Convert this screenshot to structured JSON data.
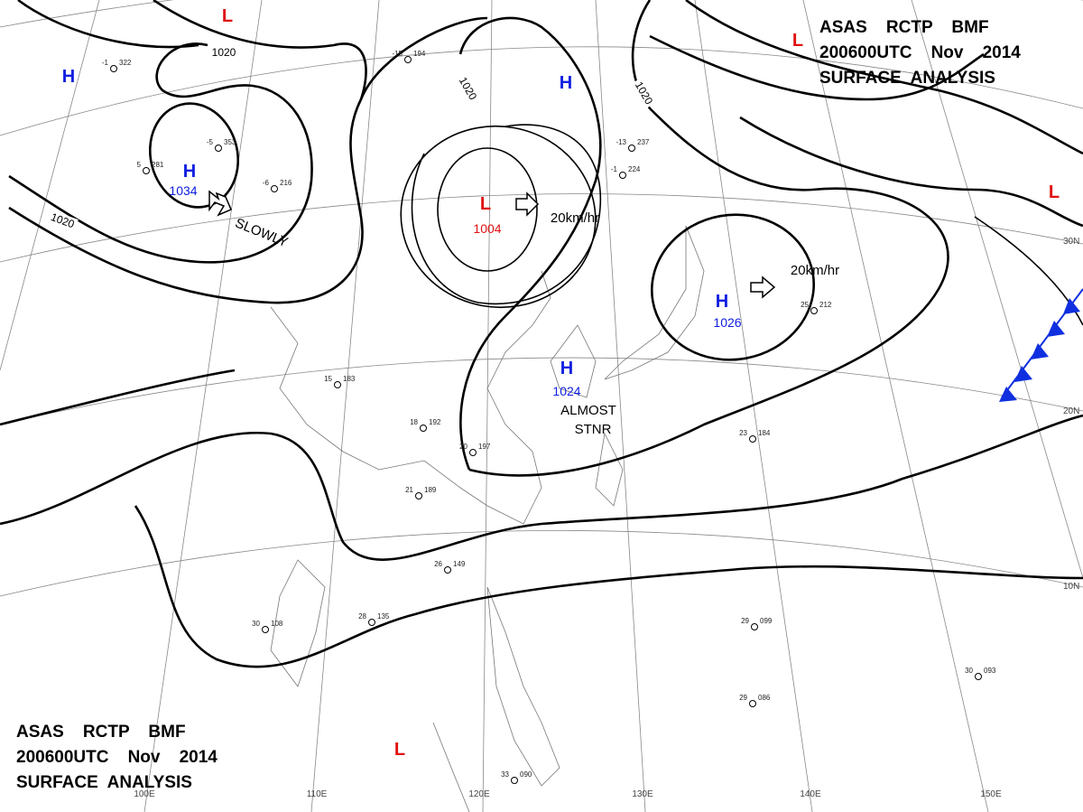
{
  "headers": [
    {
      "lines": [
        "ASAS    RCTP    BMF",
        "200600UTC    Nov    2014",
        "SURFACE  ANALYSIS"
      ]
    },
    {
      "lines": [
        "ASAS    RCTP    BMF",
        "200600UTC    Nov    2014",
        "SURFACE  ANALYSIS"
      ]
    }
  ],
  "pressure_centers": [
    {
      "symbol": "H",
      "value": "1034"
    },
    {
      "symbol": "L",
      "value": "1004"
    },
    {
      "symbol": "H",
      "value": "1026"
    },
    {
      "symbol": "H",
      "value": "1024"
    },
    {
      "symbol": "H"
    },
    {
      "symbol": "H"
    },
    {
      "symbol": "L"
    },
    {
      "symbol": "L"
    },
    {
      "symbol": "L"
    },
    {
      "symbol": "L"
    }
  ],
  "isobar_labels": [
    "1020",
    "1020",
    "1020",
    "1020"
  ],
  "motions": [
    "SLOWLY",
    "20km/hr",
    "20km/hr",
    "ALMOST",
    "STNR"
  ],
  "latitude_labels": [
    "30N",
    "20N",
    "10N"
  ],
  "longitude_labels": [
    "100E",
    "110E",
    "120E",
    "130E",
    "140E",
    "150E"
  ],
  "stations": [
    {
      "temp": "-1",
      "pressure": "322"
    },
    {
      "temp": "5",
      "pressure": "281"
    },
    {
      "temp": "-5",
      "pressure": "353"
    },
    {
      "temp": "-6",
      "pressure": "216"
    },
    {
      "temp": "-15",
      "pressure": "194"
    },
    {
      "temp": "-13",
      "pressure": "237"
    },
    {
      "temp": "-1",
      "pressure": "224"
    },
    {
      "temp": "15",
      "pressure": "183"
    },
    {
      "temp": "18",
      "pressure": "192"
    },
    {
      "temp": "20",
      "pressure": "197"
    },
    {
      "temp": "21",
      "pressure": "189"
    },
    {
      "temp": "26",
      "pressure": "149"
    },
    {
      "temp": "28",
      "pressure": "135"
    },
    {
      "temp": "30",
      "pressure": "108"
    },
    {
      "temp": "29",
      "pressure": "099"
    },
    {
      "temp": "29",
      "pressure": "086"
    },
    {
      "temp": "30",
      "pressure": "093"
    },
    {
      "temp": "25",
      "pressure": "212"
    },
    {
      "temp": "23",
      "pressure": "184"
    },
    {
      "temp": "33",
      "pressure": "090"
    }
  ]
}
